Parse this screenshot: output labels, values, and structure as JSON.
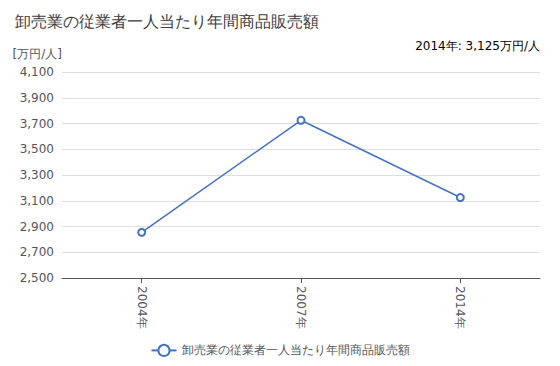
{
  "chart_data": {
    "type": "line",
    "title": "卸売業の従業者一人当たり年間商品販売額",
    "ylabel": "[万円/人]",
    "annotation": "2014年: 3,125万円/人",
    "categories": [
      "2004年",
      "2007年",
      "2014年"
    ],
    "series": [
      {
        "name": "卸売業の従業者一人当たり年間商品販売額",
        "color": "#4472C4",
        "marker": "circle",
        "values": [
          2855,
          3725,
          3125
        ]
      }
    ],
    "ylim": [
      2500,
      4100
    ],
    "yticks": [
      {
        "value": 2500,
        "label": "2,500"
      },
      {
        "value": 2700,
        "label": "2,700"
      },
      {
        "value": 2900,
        "label": "2,900"
      },
      {
        "value": 3100,
        "label": "3,100"
      },
      {
        "value": 3300,
        "label": "3,300"
      },
      {
        "value": 3500,
        "label": "3,500"
      },
      {
        "value": 3700,
        "label": "3,700"
      },
      {
        "value": 3900,
        "label": "3,900"
      },
      {
        "value": 4100,
        "label": "4,100"
      }
    ],
    "grid": true,
    "legend": "bottom"
  }
}
